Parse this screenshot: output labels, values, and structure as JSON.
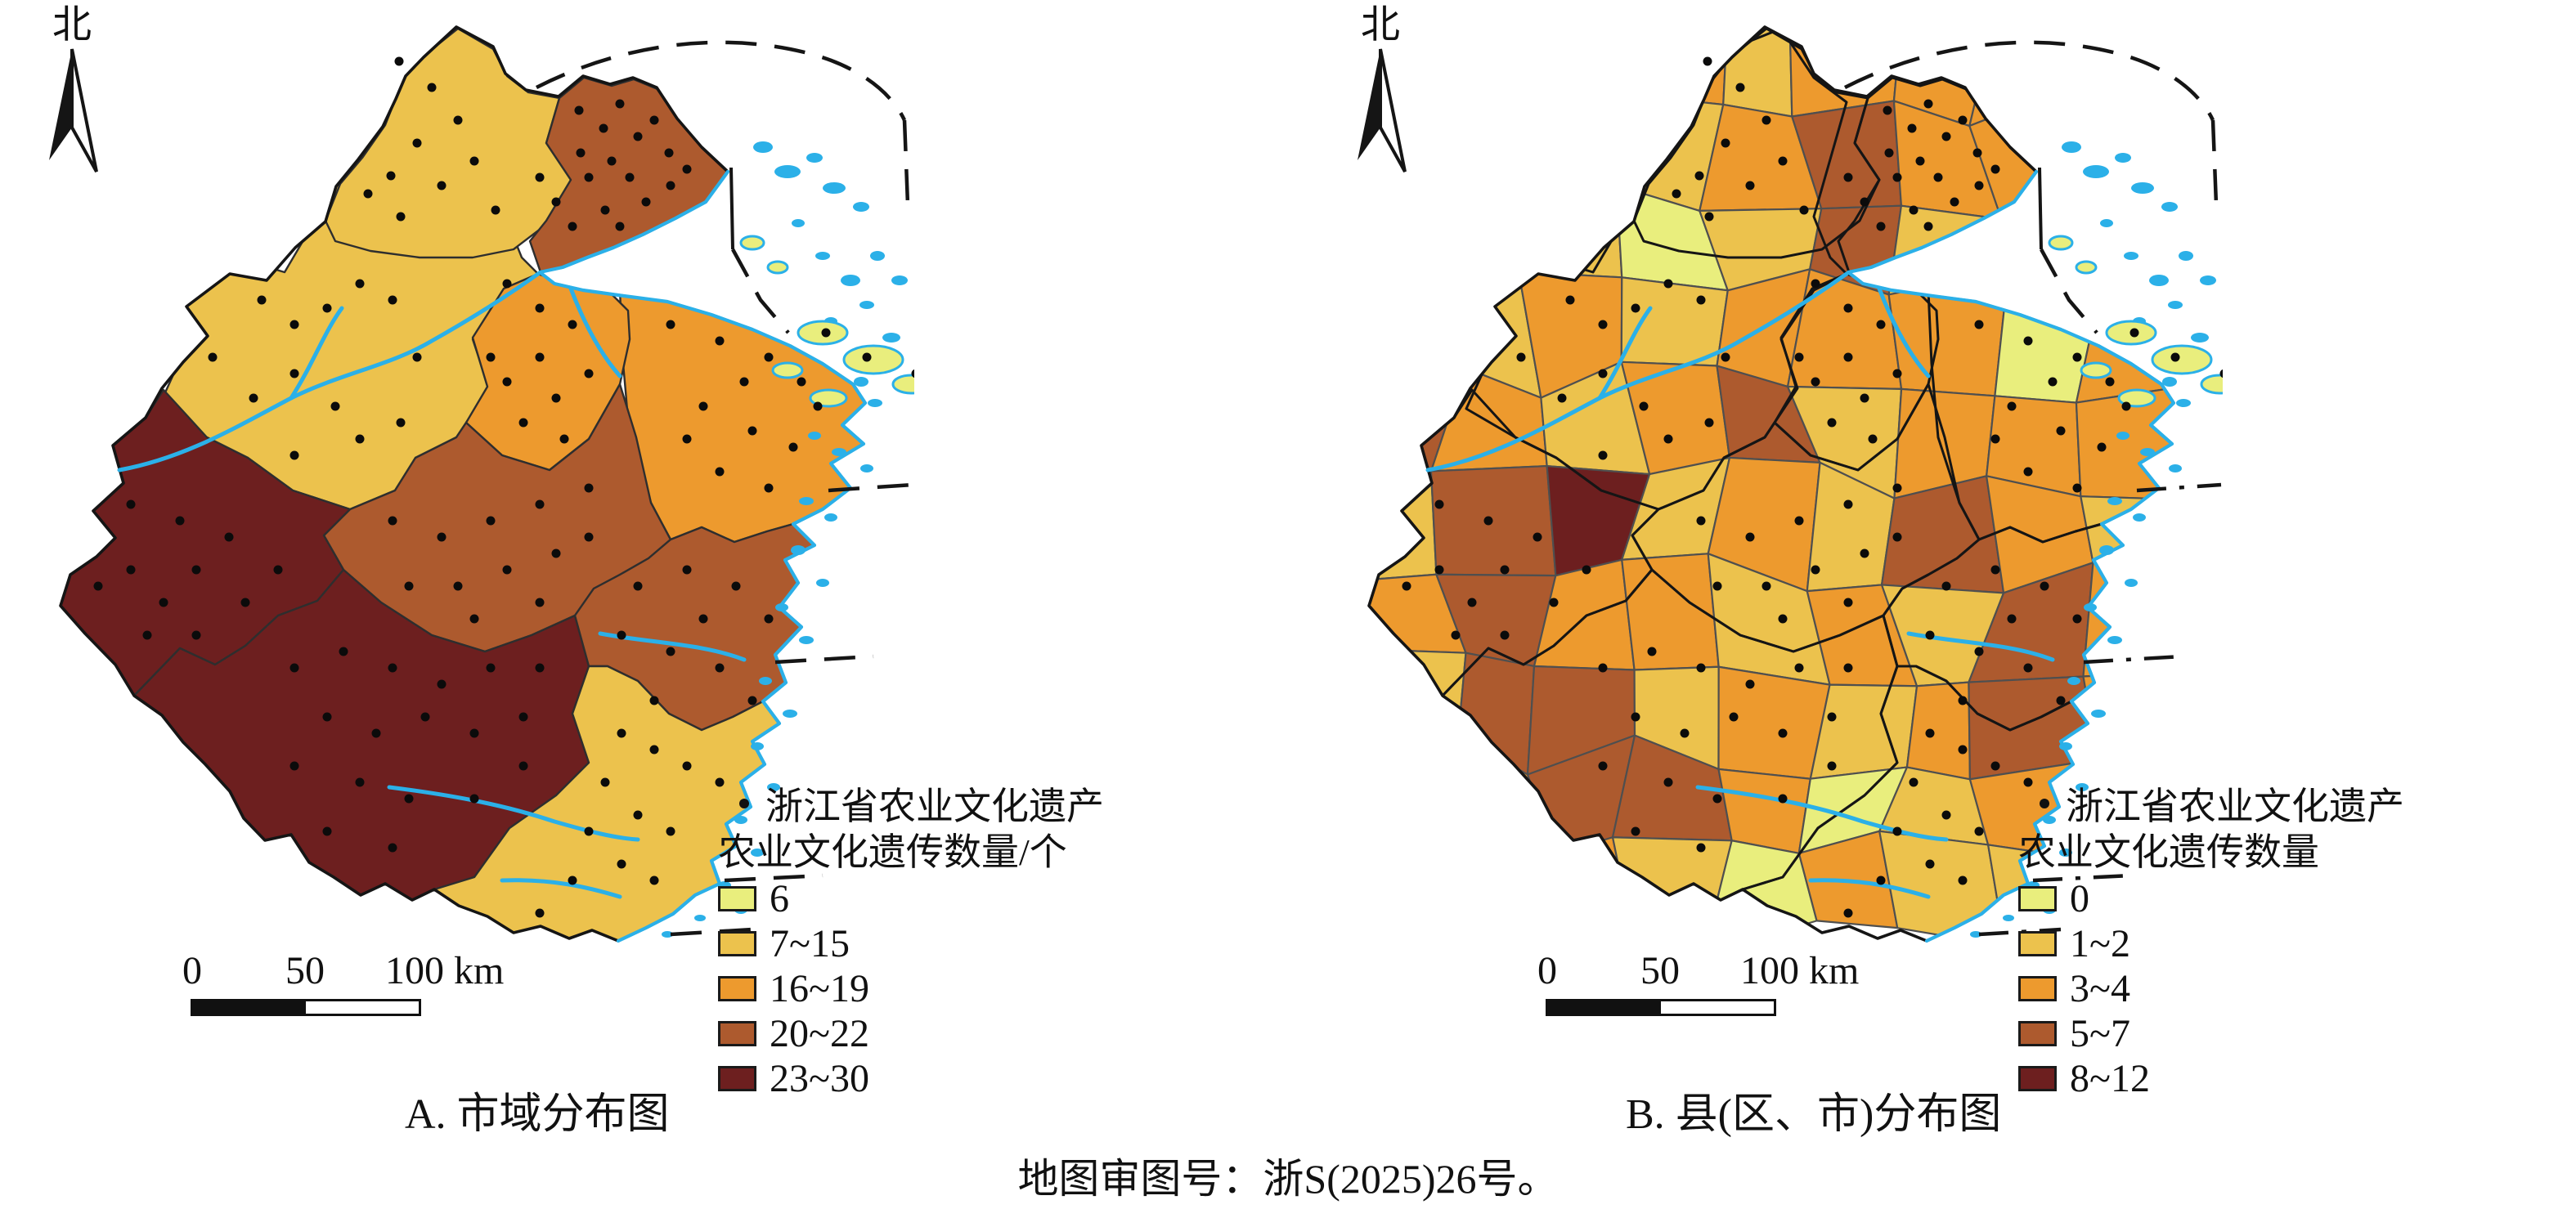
{
  "colors": {
    "water": "#2bb0e8",
    "ink": "#151515",
    "county_border": "#4f4f4f"
  },
  "class_color_map": {
    "P": "#e9ee7d",
    "Y": "#ecc24d",
    "O": "#ed9a2e",
    "B": "#ad5a2e",
    "M": "#6d1f1f"
  },
  "panels": [
    {
      "north_label": "北",
      "scalebar": {
        "start": "0",
        "mid": "50",
        "end": "100 km"
      },
      "legend": {
        "symbol_label": "浙江省农业文化遗产",
        "count_title": "农业文化遗传数量/个",
        "classes": [
          {
            "label": "6",
            "color": "#e9ee7d"
          },
          {
            "label": "7~15",
            "color": "#ecc24d"
          },
          {
            "label": "16~19",
            "color": "#ed9a2e"
          },
          {
            "label": "20~22",
            "color": "#ad5a2e"
          },
          {
            "label": "23~30",
            "color": "#6d1f1f"
          }
        ]
      },
      "caption": "A. 市域分布图",
      "region_classes": "YYBOOBMMBY",
      "island_class": "P"
    },
    {
      "north_label": "北",
      "scalebar": {
        "start": "0",
        "mid": "50",
        "end": "100 km"
      },
      "legend": {
        "symbol_label": "浙江省农业文化遗产",
        "count_title": "农业文化遗传数量",
        "classes": [
          {
            "label": "0",
            "color": "#e9ee7d"
          },
          {
            "label": "1~2",
            "color": "#ecc24d"
          },
          {
            "label": "3~4",
            "color": "#ed9a2e"
          },
          {
            "label": "5~7",
            "color": "#ad5a2e"
          },
          {
            "label": "8~12",
            "color": "#6d1f1f"
          }
        ]
      },
      "caption": "B. 县(区、市)分布图",
      "county_classes": "YOOOYOOOYYYOYOBOOOYOYPYBYOPOYOYOOOPOBOYOBYOOOYBMYOYBOYOBOOYOYBOYBBYOYOBOYOBBOPYOYYYOYPOYYY",
      "island_class": "P"
    }
  ],
  "footer": "地图审图号：浙S(2025)26号。",
  "heritage_dots": [
    [
      430,
      60
    ],
    [
      470,
      92
    ],
    [
      502,
      132
    ],
    [
      452,
      160
    ],
    [
      420,
      200
    ],
    [
      482,
      212
    ],
    [
      522,
      182
    ],
    [
      548,
      242
    ],
    [
      432,
      250
    ],
    [
      392,
      222
    ],
    [
      650,
      120
    ],
    [
      680,
      142
    ],
    [
      700,
      112
    ],
    [
      722,
      152
    ],
    [
      742,
      132
    ],
    [
      760,
      172
    ],
    [
      690,
      182
    ],
    [
      662,
      202
    ],
    [
      712,
      202
    ],
    [
      732,
      232
    ],
    [
      682,
      242
    ],
    [
      642,
      262
    ],
    [
      622,
      232
    ],
    [
      762,
      212
    ],
    [
      782,
      192
    ],
    [
      652,
      172
    ],
    [
      602,
      202
    ],
    [
      700,
      262
    ],
    [
      262,
      352
    ],
    [
      302,
      382
    ],
    [
      342,
      362
    ],
    [
      382,
      332
    ],
    [
      302,
      442
    ],
    [
      352,
      482
    ],
    [
      252,
      472
    ],
    [
      202,
      422
    ],
    [
      422,
      352
    ],
    [
      452,
      422
    ],
    [
      382,
      522
    ],
    [
      302,
      542
    ],
    [
      432,
      502
    ],
    [
      562,
      332
    ],
    [
      602,
      362
    ],
    [
      642,
      382
    ],
    [
      602,
      422
    ],
    [
      562,
      452
    ],
    [
      622,
      472
    ],
    [
      662,
      442
    ],
    [
      582,
      502
    ],
    [
      542,
      422
    ],
    [
      632,
      522
    ],
    [
      762,
      382
    ],
    [
      822,
      402
    ],
    [
      882,
      422
    ],
    [
      922,
      452
    ],
    [
      852,
      452
    ],
    [
      802,
      482
    ],
    [
      862,
      512
    ],
    [
      912,
      532
    ],
    [
      782,
      522
    ],
    [
      822,
      562
    ],
    [
      882,
      582
    ],
    [
      942,
      482
    ],
    [
      1002,
      422
    ],
    [
      1062,
      442
    ],
    [
      952,
      392
    ],
    [
      422,
      622
    ],
    [
      482,
      642
    ],
    [
      542,
      622
    ],
    [
      602,
      602
    ],
    [
      662,
      582
    ],
    [
      502,
      702
    ],
    [
      562,
      682
    ],
    [
      622,
      662
    ],
    [
      442,
      702
    ],
    [
      522,
      742
    ],
    [
      602,
      722
    ],
    [
      662,
      642
    ],
    [
      62,
      702
    ],
    [
      102,
      682
    ],
    [
      142,
      722
    ],
    [
      182,
      682
    ],
    [
      122,
      762
    ],
    [
      182,
      762
    ],
    [
      242,
      722
    ],
    [
      102,
      602
    ],
    [
      162,
      622
    ],
    [
      222,
      642
    ],
    [
      282,
      682
    ],
    [
      302,
      802
    ],
    [
      362,
      782
    ],
    [
      422,
      802
    ],
    [
      482,
      822
    ],
    [
      542,
      802
    ],
    [
      602,
      802
    ],
    [
      342,
      862
    ],
    [
      402,
      882
    ],
    [
      462,
      862
    ],
    [
      522,
      882
    ],
    [
      582,
      862
    ],
    [
      302,
      922
    ],
    [
      382,
      942
    ],
    [
      442,
      962
    ],
    [
      522,
      962
    ],
    [
      582,
      922
    ],
    [
      342,
      1002
    ],
    [
      422,
      1022
    ],
    [
      722,
      702
    ],
    [
      782,
      682
    ],
    [
      842,
      702
    ],
    [
      882,
      742
    ],
    [
      802,
      742
    ],
    [
      762,
      782
    ],
    [
      822,
      802
    ],
    [
      862,
      842
    ],
    [
      742,
      842
    ],
    [
      702,
      762
    ],
    [
      702,
      882
    ],
    [
      742,
      902
    ],
    [
      782,
      922
    ],
    [
      822,
      942
    ],
    [
      682,
      942
    ],
    [
      722,
      982
    ],
    [
      762,
      1002
    ],
    [
      702,
      1042
    ],
    [
      642,
      1062
    ],
    [
      602,
      1102
    ],
    [
      662,
      1002
    ],
    [
      742,
      1062
    ]
  ]
}
